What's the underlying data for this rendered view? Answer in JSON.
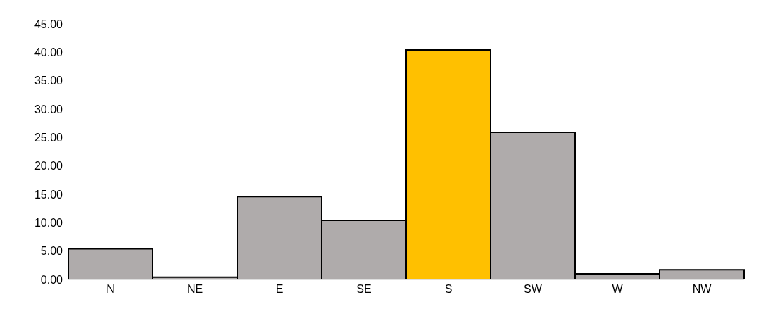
{
  "chart_data": {
    "type": "bar",
    "categories": [
      "N",
      "NE",
      "E",
      "SE",
      "S",
      "SW",
      "W",
      "NW"
    ],
    "values": [
      5.4,
      0.4,
      14.6,
      10.4,
      40.4,
      25.9,
      1.0,
      1.7
    ],
    "colors": [
      "#afabab",
      "#afabab",
      "#afabab",
      "#afabab",
      "#ffc000",
      "#afabab",
      "#afabab",
      "#afabab"
    ],
    "ylim": [
      0,
      45
    ],
    "yticks": [
      {
        "value": 0,
        "label": "0.00"
      },
      {
        "value": 5,
        "label": "5.00"
      },
      {
        "value": 10,
        "label": "10.00"
      },
      {
        "value": 15,
        "label": "15.00"
      },
      {
        "value": 20,
        "label": "20.00"
      },
      {
        "value": 25,
        "label": "25.00"
      },
      {
        "value": 30,
        "label": "30.00"
      },
      {
        "value": 35,
        "label": "35.00"
      },
      {
        "value": 40,
        "label": "40.00"
      },
      {
        "value": 45,
        "label": "45.00"
      }
    ],
    "grid": false,
    "legend": false
  }
}
